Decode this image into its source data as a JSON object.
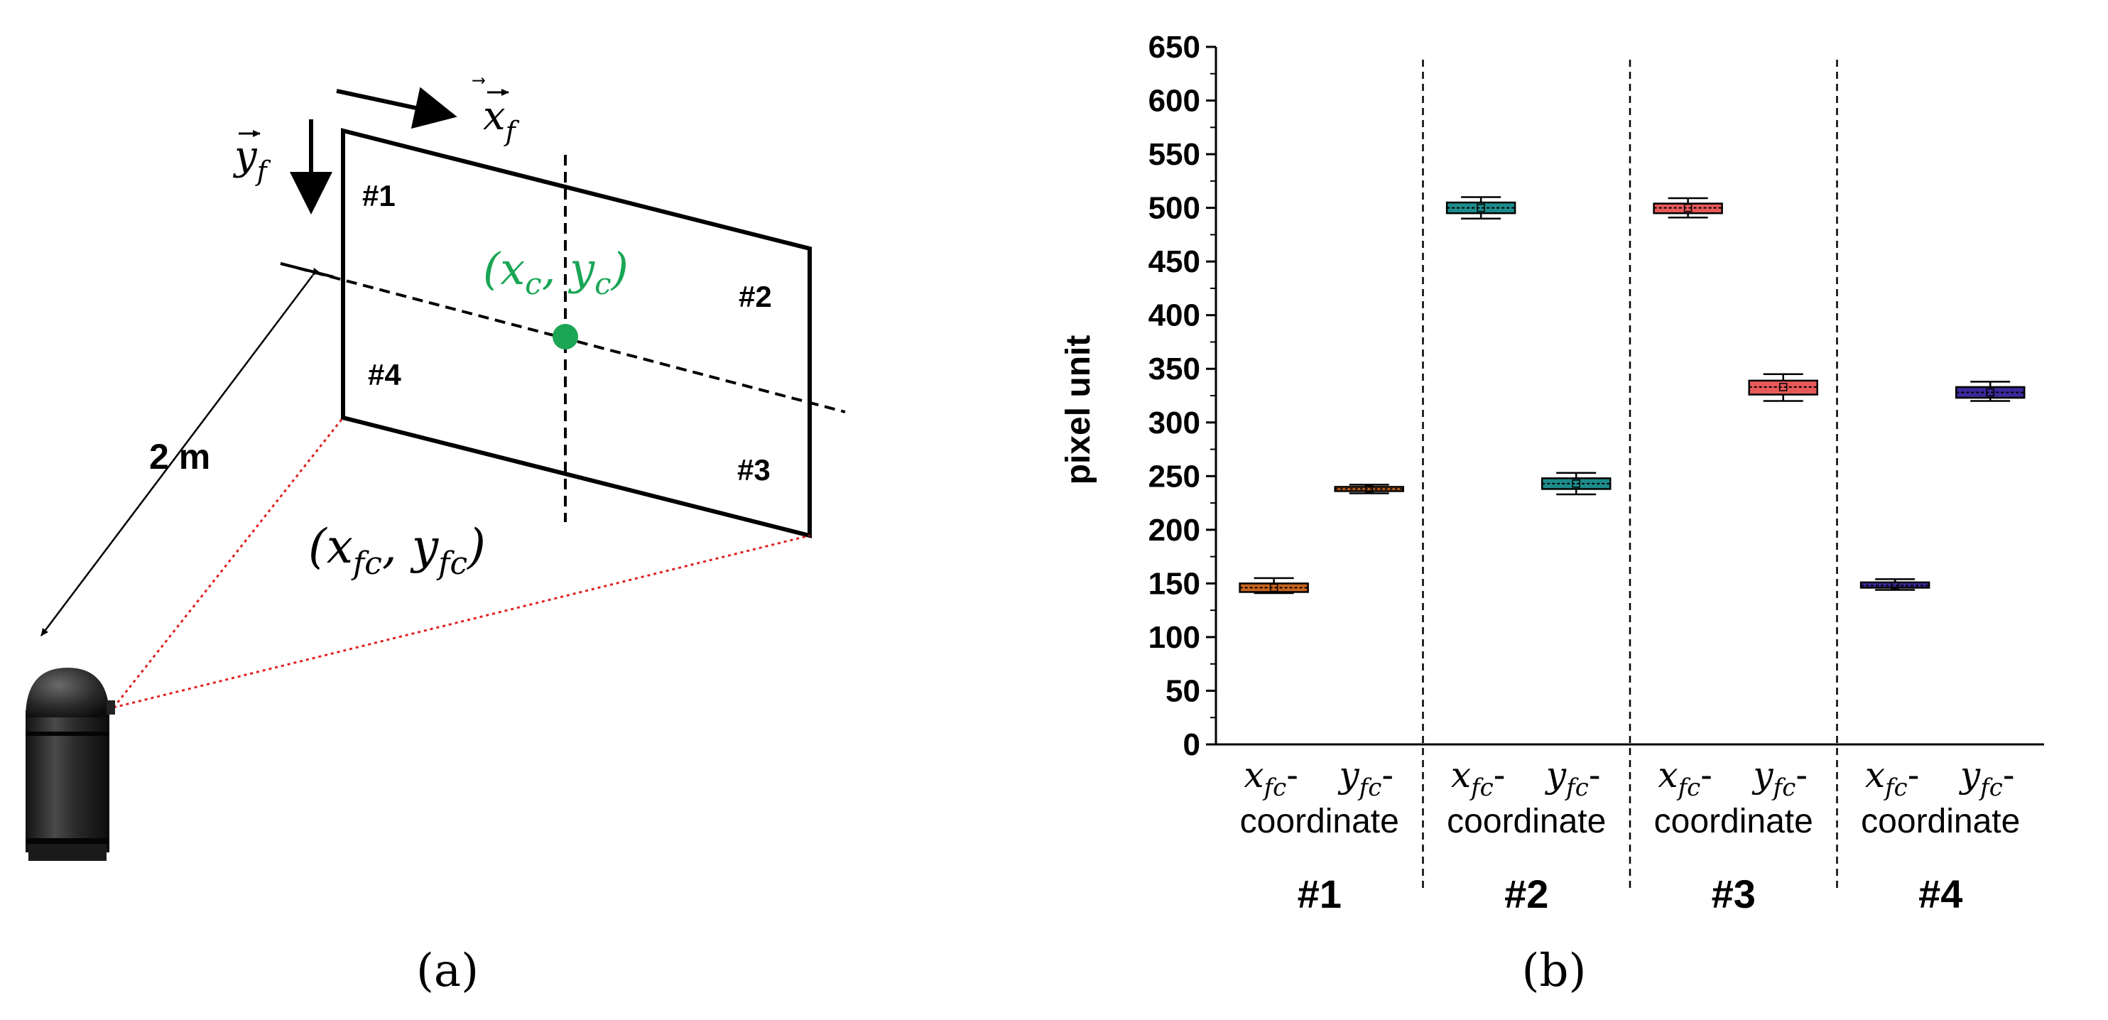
{
  "panel_a": {
    "panel_label": "(a)",
    "distance_label": "2 m",
    "x_axis_vector": "x",
    "x_axis_sub": "f",
    "y_axis_vector": "y",
    "y_axis_sub": "f",
    "center_label": "(x",
    "center_label_sub": "c",
    "center_label_mid": ", y",
    "center_label_end": ")",
    "corner_label_prefix": "(x",
    "corner_label_sub": "fc",
    "corner_label_mid": ", y",
    "corner_label_end": ")",
    "marker_labels": [
      "#1",
      "#2",
      "#3",
      "#4"
    ],
    "colors": {
      "center_point": "#1aa655",
      "view_lines": "#e02020"
    }
  },
  "panel_b": {
    "panel_label": "(b)"
  },
  "chart_data": {
    "type": "box",
    "ylabel": "pixel unit",
    "ylim": [
      0,
      650
    ],
    "yticks": [
      0,
      50,
      100,
      150,
      200,
      250,
      300,
      350,
      400,
      450,
      500,
      550,
      600,
      650
    ],
    "groups": [
      "#1",
      "#2",
      "#3",
      "#4"
    ],
    "category_label_lines": [
      [
        {
          "main": "x",
          "sub": "fc",
          "tail": "-"
        },
        {
          "main": "y",
          "sub": "fc",
          "tail": "-"
        }
      ],
      "coordinate"
    ],
    "series": [
      {
        "group": "#1",
        "coord": "x",
        "color": "#c8641e",
        "whisker_low": 141,
        "q1": 142,
        "median": 146,
        "q3": 150,
        "whisker_high": 155
      },
      {
        "group": "#1",
        "coord": "y",
        "color": "#c8641e",
        "whisker_low": 234,
        "q1": 236,
        "median": 238,
        "q3": 240,
        "whisker_high": 242
      },
      {
        "group": "#2",
        "coord": "x",
        "color": "#1e8c8c",
        "whisker_low": 490,
        "q1": 495,
        "median": 500,
        "q3": 505,
        "whisker_high": 510
      },
      {
        "group": "#2",
        "coord": "y",
        "color": "#1e8c8c",
        "whisker_low": 233,
        "q1": 238,
        "median": 243,
        "q3": 248,
        "whisker_high": 253
      },
      {
        "group": "#3",
        "coord": "x",
        "color": "#e85a5a",
        "whisker_low": 491,
        "q1": 495,
        "median": 500,
        "q3": 504,
        "whisker_high": 509
      },
      {
        "group": "#3",
        "coord": "y",
        "color": "#e85a5a",
        "whisker_low": 320,
        "q1": 326,
        "median": 333,
        "q3": 339,
        "whisker_high": 345
      },
      {
        "group": "#4",
        "coord": "x",
        "color": "#3a2a9a",
        "whisker_low": 144,
        "q1": 146,
        "median": 148,
        "q3": 151,
        "whisker_high": 154
      },
      {
        "group": "#4",
        "coord": "y",
        "color": "#3a2a9a",
        "whisker_low": 320,
        "q1": 323,
        "median": 328,
        "q3": 333,
        "whisker_high": 338
      }
    ]
  }
}
